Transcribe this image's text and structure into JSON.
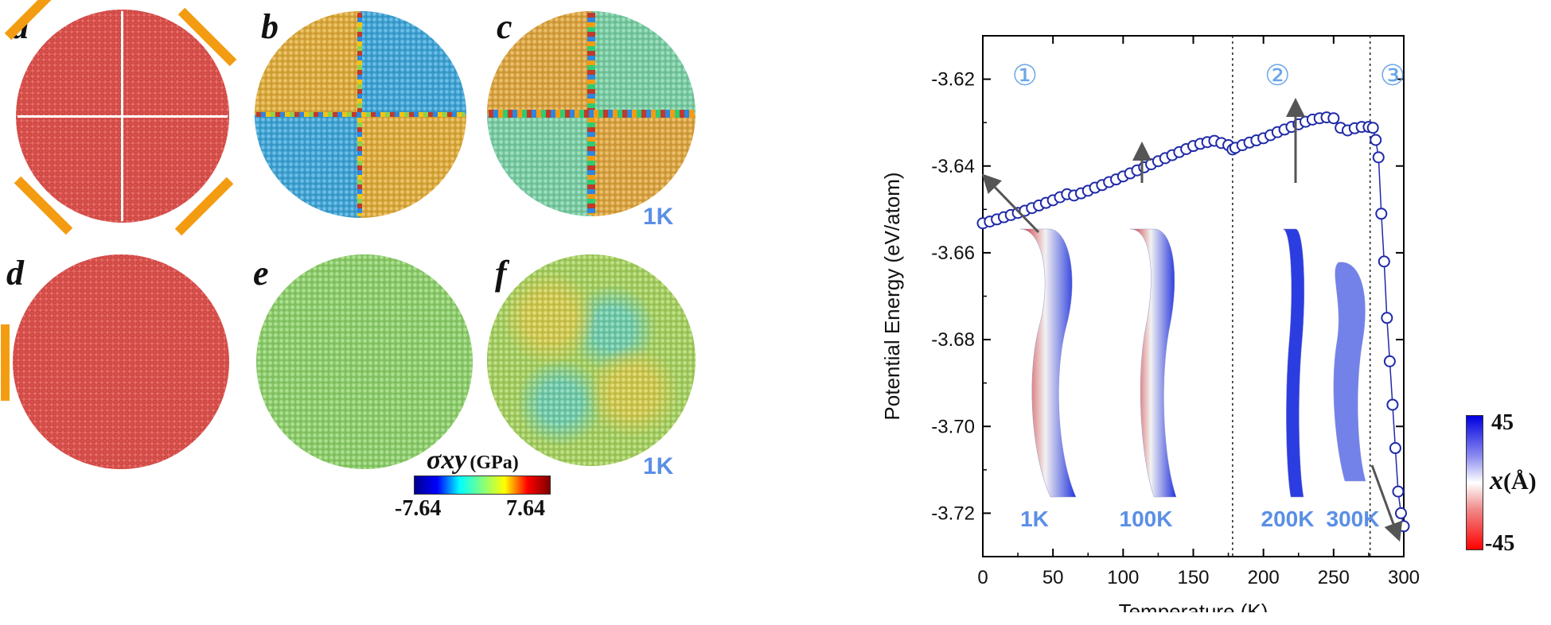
{
  "panels": {
    "a": "a",
    "b": "b",
    "c": "c",
    "d": "d",
    "e": "e",
    "f": "f"
  },
  "panel_c_temp": "1K",
  "panel_f_temp": "1K",
  "stress_colorbar": {
    "label_symbol": "σxy",
    "label_unit": "(GPa)",
    "min": "-7.64",
    "max": "7.64"
  },
  "x_colorbar": {
    "max": "45",
    "min": "-45",
    "label_symbol": "x",
    "label_unit": "(Å)"
  },
  "chart_data": {
    "type": "scatter",
    "xlabel": "Temperature (K)",
    "ylabel": "Potential Energy (eV/atom)",
    "xlim": [
      0,
      300
    ],
    "ylim": [
      -3.73,
      -3.61
    ],
    "xticks": [
      0,
      50,
      100,
      150,
      200,
      250,
      300
    ],
    "yticks": [
      -3.62,
      -3.64,
      -3.66,
      -3.68,
      -3.7,
      -3.72
    ],
    "ytick_labels": [
      "-3.62",
      "-3.64",
      "-3.66",
      "-3.68",
      "-3.70",
      "-3.72"
    ],
    "regions": [
      "①",
      "②",
      "③"
    ],
    "dividers": [
      178,
      276
    ],
    "series_color": "#1f2aa8",
    "x": [
      0,
      5,
      10,
      15,
      20,
      25,
      30,
      35,
      40,
      45,
      50,
      55,
      60,
      65,
      70,
      75,
      80,
      85,
      90,
      95,
      100,
      105,
      110,
      115,
      120,
      125,
      130,
      135,
      140,
      145,
      150,
      155,
      160,
      165,
      170,
      175,
      178,
      180,
      185,
      190,
      195,
      200,
      205,
      210,
      215,
      220,
      225,
      230,
      235,
      240,
      245,
      250,
      255,
      260,
      265,
      270,
      275,
      278,
      280,
      282,
      284,
      286,
      288,
      290,
      292,
      294,
      296,
      298,
      300
    ],
    "y": [
      -3.6532,
      -3.6528,
      -3.6523,
      -3.6518,
      -3.6513,
      -3.6508,
      -3.6503,
      -3.6497,
      -3.6491,
      -3.6485,
      -3.6479,
      -3.6472,
      -3.6465,
      -3.6468,
      -3.6463,
      -3.6457,
      -3.645,
      -3.6444,
      -3.6437,
      -3.6431,
      -3.6424,
      -3.6417,
      -3.641,
      -3.6403,
      -3.6396,
      -3.6389,
      -3.6382,
      -3.6375,
      -3.6368,
      -3.6361,
      -3.6354,
      -3.6349,
      -3.6345,
      -3.6342,
      -3.6347,
      -3.6352,
      -3.6362,
      -3.6358,
      -3.6352,
      -3.6346,
      -3.6341,
      -3.6336,
      -3.6329,
      -3.6322,
      -3.6316,
      -3.631,
      -3.6304,
      -3.6298,
      -3.6293,
      -3.629,
      -3.6288,
      -3.629,
      -3.6312,
      -3.6318,
      -3.6313,
      -3.631,
      -3.631,
      -3.6312,
      -3.634,
      -3.638,
      -3.651,
      -3.662,
      -3.675,
      -3.685,
      -3.695,
      -3.705,
      -3.715,
      -3.72,
      -3.723
    ],
    "insets": [
      "1K",
      "100K",
      "200K",
      "300K"
    ]
  }
}
